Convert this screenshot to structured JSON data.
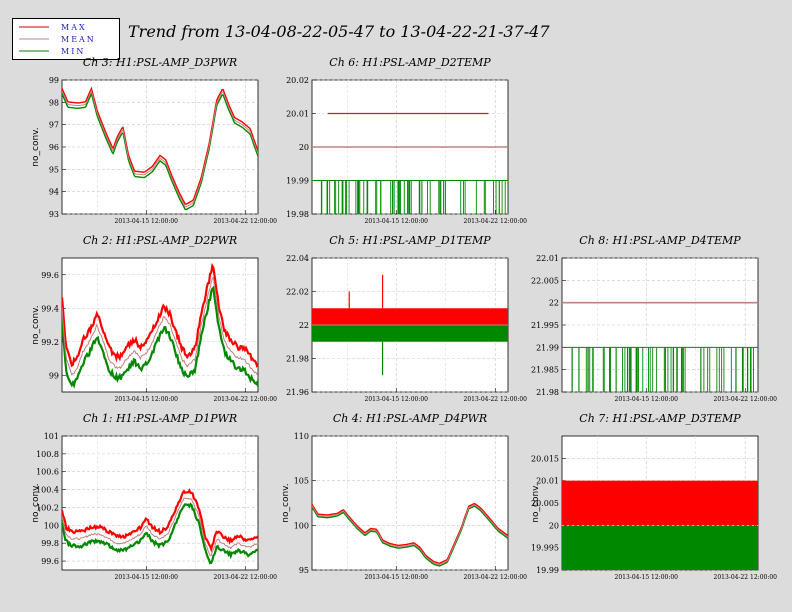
{
  "title": "Trend from 13-04-08-22-05-47 to 13-04-22-21-37-47",
  "legend": [
    {
      "label": "MAX",
      "color": "#cc0000"
    },
    {
      "label": "MEAN",
      "color": "#c08080"
    },
    {
      "label": "MIN",
      "color": "#008000"
    }
  ],
  "colors": {
    "max": "#ff0000",
    "mean": "#c08080",
    "min": "#008800"
  },
  "chart_data": [
    {
      "id": "ch3",
      "type": "line",
      "title": "Ch 3: H1:PSL-AMP_D3PWR",
      "ylabel": "no_conv.",
      "ylim": [
        93,
        99
      ],
      "yticks": [
        "93",
        "94",
        "95",
        "96",
        "97",
        "98",
        "99"
      ],
      "xticks": [
        "2013-04-15 12:00:00",
        "2013-04-22 12:00:00"
      ],
      "kind": "smooth",
      "mean": [
        [
          0,
          98.5
        ],
        [
          0.03,
          97.9
        ],
        [
          0.08,
          97.85
        ],
        [
          0.12,
          97.9
        ],
        [
          0.15,
          98.5
        ],
        [
          0.18,
          97.5
        ],
        [
          0.22,
          96.6
        ],
        [
          0.26,
          95.8
        ],
        [
          0.28,
          96.3
        ],
        [
          0.31,
          96.8
        ],
        [
          0.34,
          95.5
        ],
        [
          0.37,
          94.8
        ],
        [
          0.42,
          94.75
        ],
        [
          0.46,
          95.0
        ],
        [
          0.5,
          95.5
        ],
        [
          0.53,
          95.3
        ],
        [
          0.56,
          94.6
        ],
        [
          0.6,
          93.8
        ],
        [
          0.63,
          93.3
        ],
        [
          0.67,
          93.5
        ],
        [
          0.71,
          94.5
        ],
        [
          0.75,
          96.0
        ],
        [
          0.79,
          98.0
        ],
        [
          0.82,
          98.5
        ],
        [
          0.85,
          97.8
        ],
        [
          0.88,
          97.2
        ],
        [
          0.92,
          97.0
        ],
        [
          0.96,
          96.7
        ],
        [
          1.0,
          95.7
        ]
      ],
      "spread": 0.12
    },
    {
      "id": "ch6",
      "type": "line",
      "title": "Ch 6: H1:PSL-AMP_D2TEMP",
      "ylabel": "",
      "ylim": [
        19.98,
        20.02
      ],
      "yticks": [
        "19.98",
        "19.99",
        "20",
        "20.01",
        "20.02"
      ],
      "xticks": [
        "2013-04-15 12:00:00",
        "2013-04-22 12:00:00"
      ],
      "kind": "temp",
      "max_level": 20.01,
      "max_range": [
        0.08,
        0.9
      ],
      "mean_level": 20.0,
      "min_level": 19.99,
      "min_drop": 19.98
    },
    {
      "id": "ch2",
      "type": "line",
      "title": "Ch 2: H1:PSL-AMP_D2PWR",
      "ylabel": "no_conv.",
      "ylim": [
        98.9,
        99.7
      ],
      "yticks": [
        "99",
        "99.2",
        "99.4",
        "99.6"
      ],
      "xticks": [
        "2013-04-15 12:00:00",
        "2013-04-22 12:00:00"
      ],
      "kind": "noisy",
      "mean": [
        [
          0,
          99.4
        ],
        [
          0.02,
          99.1
        ],
        [
          0.05,
          99.0
        ],
        [
          0.08,
          99.05
        ],
        [
          0.11,
          99.15
        ],
        [
          0.14,
          99.2
        ],
        [
          0.18,
          99.3
        ],
        [
          0.21,
          99.2
        ],
        [
          0.24,
          99.1
        ],
        [
          0.27,
          99.05
        ],
        [
          0.3,
          99.05
        ],
        [
          0.33,
          99.1
        ],
        [
          0.37,
          99.15
        ],
        [
          0.4,
          99.1
        ],
        [
          0.44,
          99.15
        ],
        [
          0.48,
          99.25
        ],
        [
          0.52,
          99.35
        ],
        [
          0.55,
          99.3
        ],
        [
          0.58,
          99.2
        ],
        [
          0.61,
          99.1
        ],
        [
          0.64,
          99.05
        ],
        [
          0.68,
          99.1
        ],
        [
          0.71,
          99.3
        ],
        [
          0.74,
          99.45
        ],
        [
          0.77,
          99.6
        ],
        [
          0.8,
          99.35
        ],
        [
          0.83,
          99.2
        ],
        [
          0.86,
          99.15
        ],
        [
          0.9,
          99.1
        ],
        [
          0.93,
          99.1
        ],
        [
          0.96,
          99.05
        ],
        [
          1.0,
          99.0
        ]
      ],
      "spread": 0.05
    },
    {
      "id": "ch5",
      "type": "line",
      "title": "Ch 5: H1:PSL-AMP_D1TEMP",
      "ylabel": "",
      "ylim": [
        21.96,
        22.04
      ],
      "yticks": [
        "21.96",
        "21.98",
        "22",
        "22.02",
        "22.04"
      ],
      "xticks": [
        "2013-04-15 12:00:00",
        "2013-04-22 12:00:00"
      ],
      "kind": "band",
      "max_top": 22.01,
      "mean": 22.0,
      "min_bot": 21.99,
      "spikes_up": [
        [
          0.19,
          22.02
        ],
        [
          0.36,
          22.03
        ]
      ],
      "spikes_down": [
        [
          0.36,
          21.97
        ]
      ]
    },
    {
      "id": "ch8",
      "type": "line",
      "title": "Ch 8: H1:PSL-AMP_D4TEMP",
      "ylabel": "",
      "ylim": [
        21.98,
        22.01
      ],
      "yticks": [
        "21.98",
        "21.985",
        "21.99",
        "21.995",
        "22",
        "22.005",
        "22.01"
      ],
      "xticks": [
        "2013-04-15 12:00:00",
        "2013-04-22 12:00:00"
      ],
      "kind": "temp",
      "max_level": null,
      "max_range": [
        0,
        0
      ],
      "mean_level": 22.0,
      "min_level": 21.99,
      "min_drop": 21.98
    },
    {
      "id": "ch1",
      "type": "line",
      "title": "Ch 1: H1:PSL-AMP_D1PWR",
      "ylabel": "no_conv.",
      "ylim": [
        99.5,
        101
      ],
      "yticks": [
        "99.6",
        "99.8",
        "100",
        "100.2",
        "100.4",
        "100.6",
        "100.8",
        "101"
      ],
      "xticks": [
        "2013-04-15 12:00:00",
        "2013-04-22 12:00:00"
      ],
      "kind": "noisy",
      "mean": [
        [
          0,
          100.1
        ],
        [
          0.02,
          99.9
        ],
        [
          0.05,
          99.85
        ],
        [
          0.1,
          99.85
        ],
        [
          0.15,
          99.9
        ],
        [
          0.2,
          99.9
        ],
        [
          0.24,
          99.85
        ],
        [
          0.28,
          99.8
        ],
        [
          0.32,
          99.8
        ],
        [
          0.36,
          99.85
        ],
        [
          0.4,
          99.9
        ],
        [
          0.43,
          100.0
        ],
        [
          0.46,
          99.9
        ],
        [
          0.5,
          99.85
        ],
        [
          0.54,
          99.9
        ],
        [
          0.58,
          100.1
        ],
        [
          0.62,
          100.3
        ],
        [
          0.66,
          100.3
        ],
        [
          0.7,
          100.1
        ],
        [
          0.73,
          99.8
        ],
        [
          0.76,
          99.65
        ],
        [
          0.79,
          99.85
        ],
        [
          0.82,
          99.8
        ],
        [
          0.86,
          99.75
        ],
        [
          0.9,
          99.8
        ],
        [
          0.95,
          99.75
        ],
        [
          1.0,
          99.8
        ]
      ],
      "spread": 0.06
    },
    {
      "id": "ch4",
      "type": "line",
      "title": "Ch 4: H1:PSL-AMP_D4PWR",
      "ylabel": "no_conv.",
      "ylim": [
        95,
        110
      ],
      "yticks": [
        "95",
        "100",
        "105",
        "110"
      ],
      "xticks": [
        "2013-04-15 12:00:00",
        "2013-04-22 12:00:00"
      ],
      "kind": "smooth",
      "mean": [
        [
          0,
          102.2
        ],
        [
          0.03,
          101.1
        ],
        [
          0.08,
          101.0
        ],
        [
          0.13,
          101.2
        ],
        [
          0.16,
          101.6
        ],
        [
          0.19,
          100.8
        ],
        [
          0.23,
          99.8
        ],
        [
          0.27,
          99.0
        ],
        [
          0.3,
          99.5
        ],
        [
          0.33,
          99.4
        ],
        [
          0.36,
          98.2
        ],
        [
          0.4,
          97.8
        ],
        [
          0.44,
          97.6
        ],
        [
          0.48,
          97.7
        ],
        [
          0.52,
          97.9
        ],
        [
          0.55,
          97.4
        ],
        [
          0.58,
          96.5
        ],
        [
          0.62,
          95.8
        ],
        [
          0.65,
          95.6
        ],
        [
          0.69,
          96.0
        ],
        [
          0.72,
          97.5
        ],
        [
          0.76,
          99.5
        ],
        [
          0.8,
          102.0
        ],
        [
          0.83,
          102.3
        ],
        [
          0.86,
          101.8
        ],
        [
          0.9,
          100.8
        ],
        [
          0.95,
          99.5
        ],
        [
          1.0,
          98.7
        ]
      ],
      "spread": 0.15
    },
    {
      "id": "ch7",
      "type": "line",
      "title": "Ch 7: H1:PSL-AMP_D3TEMP",
      "ylabel": "no_conv.",
      "ylim": [
        19.99,
        20.02
      ],
      "yticks": [
        "19.99",
        "19.995",
        "20",
        "20.005",
        "20.01",
        "20.015"
      ],
      "xticks": [
        "2013-04-15 12:00:00",
        "2013-04-22 12:00:00"
      ],
      "kind": "band2",
      "max_top": 20.01,
      "mean": 20.0,
      "min_bot": 19.99
    }
  ]
}
